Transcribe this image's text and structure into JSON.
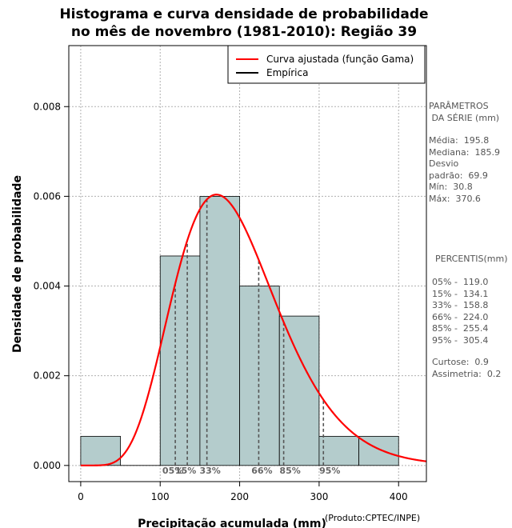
{
  "chart_data": {
    "type": "bar",
    "title_line1": "Histograma e curva densidade de probabilidade",
    "title_line2": "no mês de novembro (1981-2010): Região 39",
    "xlabel": "Precipitação acumulada (mm)",
    "ylabel": "Densidade de probabilidade",
    "credit": "(Produto:CPTEC/INPE)",
    "xlim": [
      -15,
      435
    ],
    "ylim": [
      -0.00036,
      0.00936
    ],
    "x_ticks": [
      0,
      100,
      200,
      300,
      400
    ],
    "y_ticks": [
      0.0,
      0.002,
      0.004,
      0.006,
      0.008
    ],
    "y_tick_labels": [
      "0.000",
      "0.002",
      "0.004",
      "0.006",
      "0.008"
    ],
    "grid": true,
    "bins": [
      {
        "start": 0,
        "end": 50,
        "density": 0.00065
      },
      {
        "start": 50,
        "end": 100,
        "density": 0.0
      },
      {
        "start": 100,
        "end": 150,
        "density": 0.00467
      },
      {
        "start": 150,
        "end": 200,
        "density": 0.006
      },
      {
        "start": 200,
        "end": 250,
        "density": 0.004
      },
      {
        "start": 250,
        "end": 300,
        "density": 0.00333
      },
      {
        "start": 300,
        "end": 350,
        "density": 0.00065
      },
      {
        "start": 350,
        "end": 400,
        "density": 0.00065
      }
    ],
    "gamma_fit": {
      "shape": 7.85,
      "rate": 0.0401
    },
    "percentiles": [
      {
        "label": "05%",
        "value": 119.0
      },
      {
        "label": "15%",
        "value": 134.1
      },
      {
        "label": "33%",
        "value": 158.8
      },
      {
        "label": "66%",
        "value": 224.0
      },
      {
        "label": "85%",
        "value": 255.4
      },
      {
        "label": "95%",
        "value": 305.4
      }
    ],
    "percentile_label_text": [
      "05%",
      "15%",
      "33%",
      "66%",
      "85%",
      "95%"
    ],
    "legend": {
      "position": "top-right",
      "entries": [
        {
          "label": "Curva ajustada (função Gama)",
          "color": "#ff0000"
        },
        {
          "label": "Empírica",
          "color": "#000000"
        }
      ]
    },
    "colors": {
      "bar_fill": "#b4cccc",
      "curve": "#ff0000",
      "grid": "#b0b0b0",
      "percentile_line": "#555555"
    }
  },
  "side_panel": {
    "parametros_title": "PARÂMETROS\n DA SÉRIE (mm)",
    "parametros_values": "Média:  195.8\nMediana:  185.9\nDesvio\npadrão:  69.9\nMín:  30.8\nMáx:  370.6",
    "percentis_title": "PERCENTIS(mm)",
    "percentis_values": "05% -  119.0\n15% -  134.1\n33% -  158.8\n66% -  224.0\n85% -  255.4\n95% -  305.4",
    "extra_values": "Curtose:  0.9\nAssimetria:  0.2"
  }
}
